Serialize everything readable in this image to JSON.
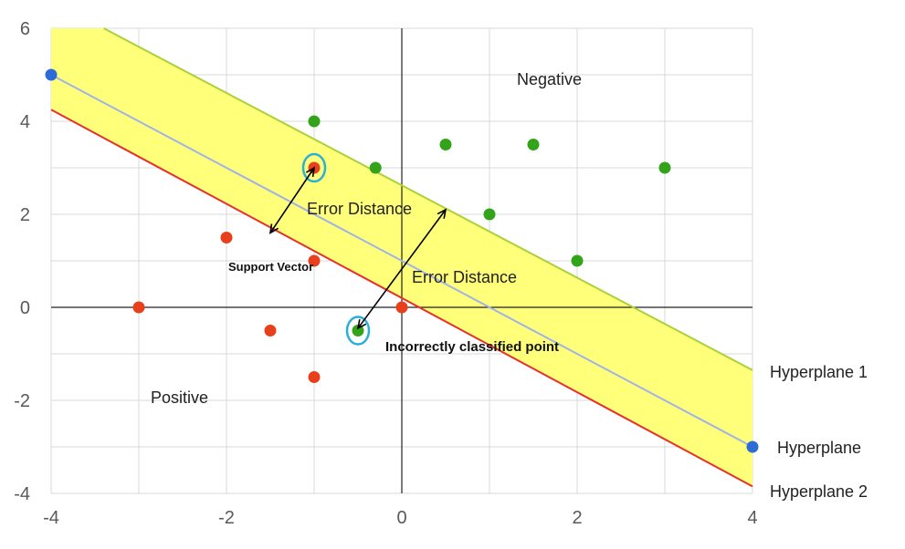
{
  "chart_data": {
    "type": "scatter",
    "xlim": [
      -4,
      4
    ],
    "ylim": [
      -4,
      6
    ],
    "grid": true,
    "x_ticks": [
      -4,
      -2,
      0,
      2,
      4
    ],
    "y_ticks": [
      -4,
      -2,
      0,
      2,
      4,
      6
    ],
    "x_tick_labels": [
      "-4",
      "-2",
      "0",
      "2",
      "4"
    ],
    "y_tick_labels": [
      "-4",
      "-2",
      "0",
      "2",
      "4",
      "6"
    ],
    "series": [
      {
        "color": "#e8401c",
        "points": [
          [
            -1,
            3
          ],
          [
            -2,
            1.5
          ],
          [
            -1,
            1
          ],
          [
            -3,
            0
          ],
          [
            -1.5,
            -0.5
          ],
          [
            0,
            0
          ],
          [
            -1,
            -1.5
          ]
        ]
      },
      {
        "color": "#33a31a",
        "points": [
          [
            -1,
            4
          ],
          [
            -0.3,
            3
          ],
          [
            0.5,
            3.5
          ],
          [
            1.5,
            3.5
          ],
          [
            3,
            3
          ],
          [
            1,
            2
          ],
          [
            2,
            1
          ],
          [
            -0.5,
            -0.5
          ]
        ]
      }
    ],
    "lines": [
      {
        "label": "Hyperplane 1",
        "color": "#a8d13a",
        "from": [
          -3.4,
          6
        ],
        "to": [
          4,
          -1.35
        ]
      },
      {
        "label": "Hyperplane",
        "color": "#9fb3e6",
        "from": [
          -4,
          5
        ],
        "to": [
          4,
          -3
        ],
        "endpoint_color": "#2e6bd6"
      },
      {
        "label": "Hyperplane 2",
        "color": "#e8302a",
        "from": [
          -4,
          4.25
        ],
        "to": [
          4,
          -3.85
        ]
      }
    ],
    "margin_fill": "#ffff7a",
    "circled_points": [
      [
        -1,
        3
      ],
      [
        -0.5,
        -0.5
      ]
    ],
    "circle_color": "#2ab0d8",
    "arrows": [
      {
        "from": [
          -1.5,
          1.6
        ],
        "to": [
          -1,
          3
        ]
      },
      {
        "from": [
          -0.5,
          -0.45
        ],
        "to": [
          0.5,
          2.1
        ]
      }
    ],
    "region_labels": {
      "negative": "Negative",
      "positive": "Positive"
    },
    "annotations": {
      "error_distance_1": "Error Distance",
      "error_distance_2": "Error Distance",
      "support_vector": "Support Vector",
      "incorrect": "Incorrectly classified point"
    }
  }
}
